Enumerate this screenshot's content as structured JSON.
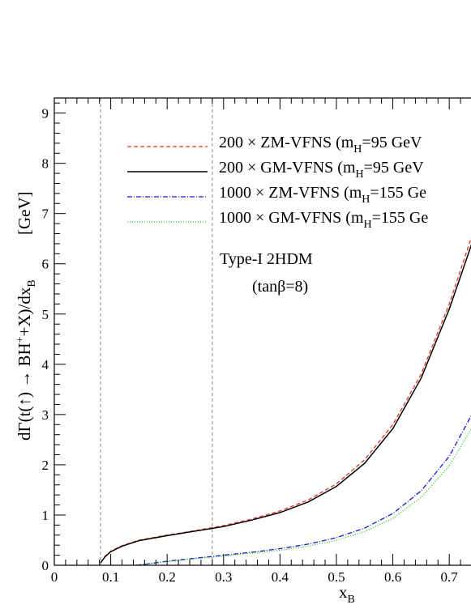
{
  "chart_data": {
    "type": "line",
    "xlabel_main": "x",
    "xlabel_sub": "B",
    "ylabel_parts": [
      "dΓ(t(",
      "↑",
      ") → BH",
      "+",
      "+X)/dx",
      "B"
    ],
    "ylabel_unit": "[GeV]",
    "xlim": [
      0,
      0.74
    ],
    "ylim": [
      0,
      9.3
    ],
    "xticks": [
      "0",
      "0.1",
      "0.2",
      "0.3",
      "0.4",
      "0.5",
      "0.6",
      "0.7"
    ],
    "yticks": [
      "0",
      "1",
      "2",
      "3",
      "4",
      "5",
      "6",
      "7",
      "8",
      "9"
    ],
    "vertical_lines": [
      0.082,
      0.28
    ],
    "annotations": {
      "model": "Type-I 2HDM",
      "param": "(tanβ=8)"
    },
    "series": [
      {
        "name_prefix": "200 × ZM-VFNS (m",
        "name_sub": "H",
        "name_suffix": "=95 GeV",
        "color": "#e8352a",
        "dash": "5,3",
        "x": [
          0.082,
          0.09,
          0.1,
          0.12,
          0.15,
          0.2,
          0.25,
          0.3,
          0.35,
          0.4,
          0.45,
          0.5,
          0.55,
          0.6,
          0.65,
          0.7,
          0.74
        ],
        "y": [
          0.05,
          0.18,
          0.28,
          0.39,
          0.5,
          0.6,
          0.69,
          0.79,
          0.92,
          1.08,
          1.3,
          1.62,
          2.1,
          2.8,
          3.8,
          5.2,
          6.55
        ]
      },
      {
        "name_prefix": "200 × GM-VFNS (m",
        "name_sub": "H",
        "name_suffix": "=95 GeV",
        "color": "#000000",
        "dash": "",
        "x": [
          0.082,
          0.09,
          0.1,
          0.12,
          0.15,
          0.2,
          0.25,
          0.3,
          0.35,
          0.4,
          0.45,
          0.5,
          0.55,
          0.6,
          0.65,
          0.7,
          0.74
        ],
        "y": [
          0.05,
          0.17,
          0.27,
          0.38,
          0.49,
          0.59,
          0.68,
          0.77,
          0.9,
          1.05,
          1.26,
          1.57,
          2.03,
          2.72,
          3.72,
          5.1,
          6.4
        ]
      },
      {
        "name_prefix": "1000 × ZM-VFNS (m",
        "name_sub": "H",
        "name_suffix": "=155 Ge",
        "color": "#1a1acd",
        "dash": "6,2,1,2",
        "x": [
          0.145,
          0.16,
          0.2,
          0.25,
          0.3,
          0.35,
          0.4,
          0.45,
          0.5,
          0.55,
          0.6,
          0.65,
          0.7,
          0.74
        ],
        "y": [
          0.0,
          0.02,
          0.08,
          0.14,
          0.2,
          0.26,
          0.33,
          0.42,
          0.55,
          0.74,
          1.03,
          1.48,
          2.17,
          3.0
        ]
      },
      {
        "name_prefix": "1000 × GM-VFNS (m",
        "name_sub": "H",
        "name_suffix": "=155 Ge",
        "color": "#22cc22",
        "dash": "1,2",
        "x": [
          0.145,
          0.16,
          0.2,
          0.25,
          0.3,
          0.35,
          0.4,
          0.45,
          0.5,
          0.55,
          0.6,
          0.65,
          0.7,
          0.74
        ],
        "y": [
          0.0,
          0.02,
          0.07,
          0.13,
          0.18,
          0.24,
          0.3,
          0.38,
          0.5,
          0.67,
          0.93,
          1.35,
          1.98,
          2.73
        ]
      }
    ]
  }
}
